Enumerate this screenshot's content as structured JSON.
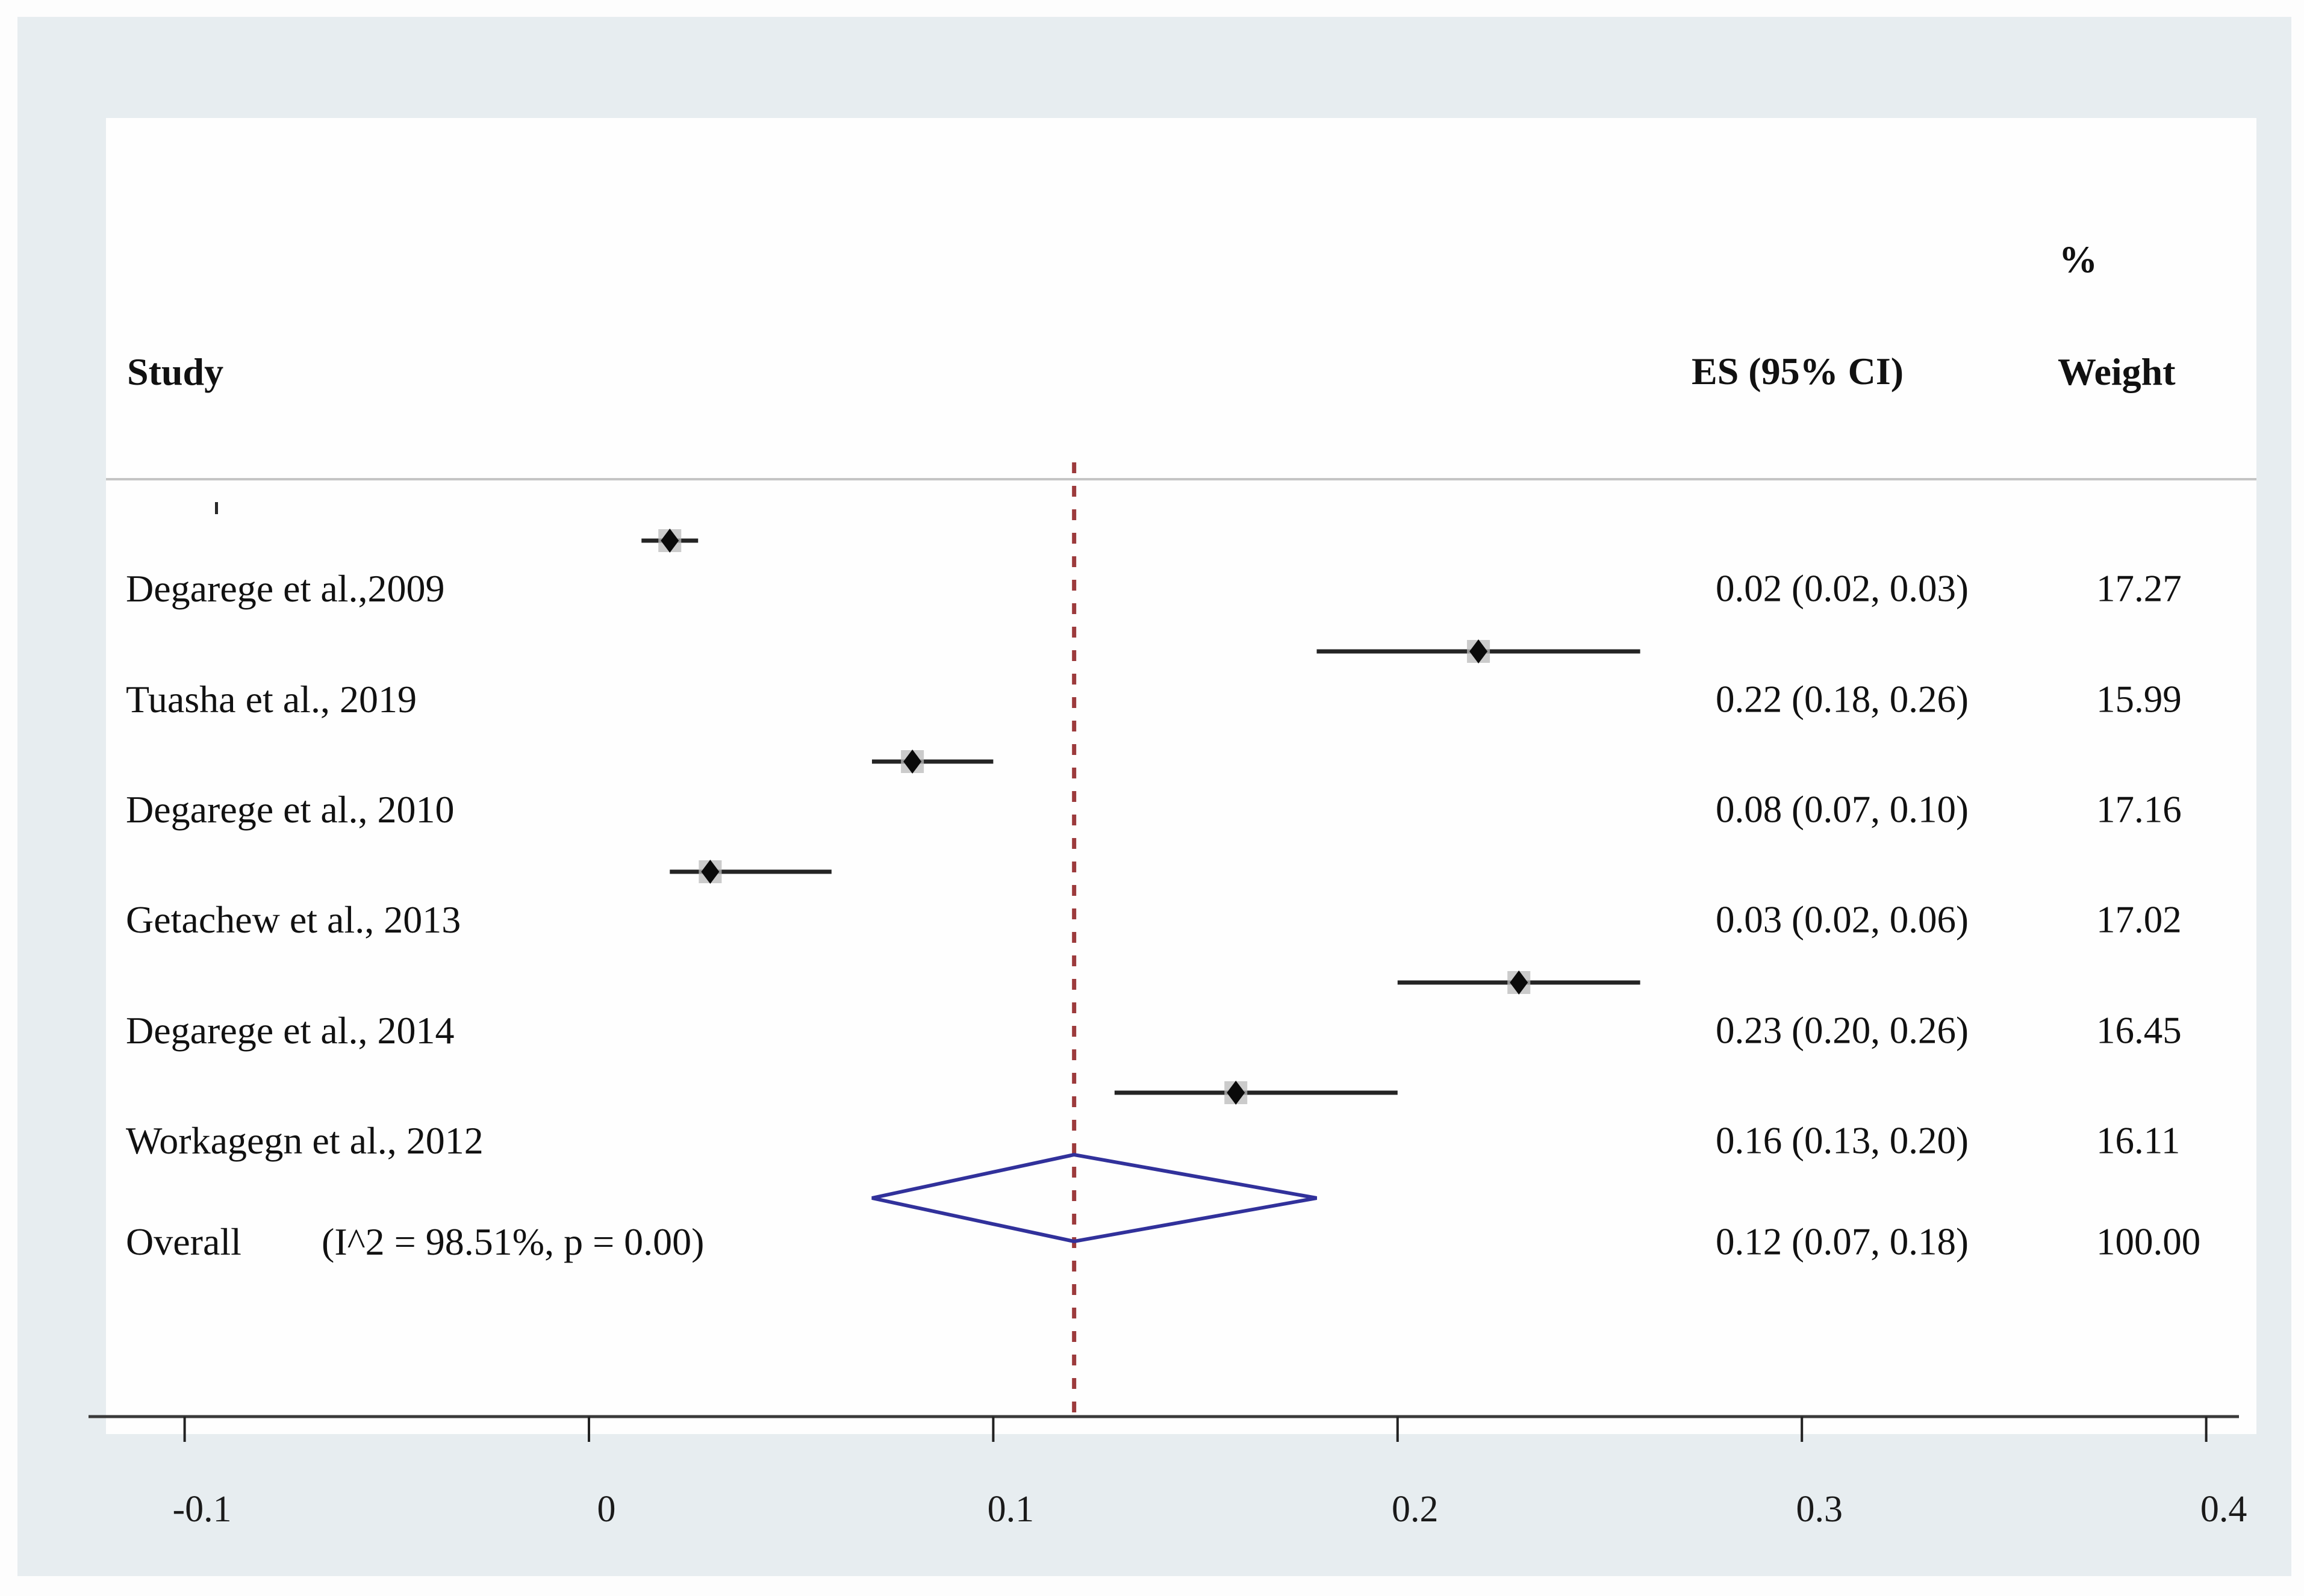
{
  "figure": {
    "kind": "forest-plot",
    "header": {
      "study_col": "Study",
      "percent_symbol": "%",
      "es_col": "ES (95% CI)",
      "weight_col": "Weight"
    },
    "colors": {
      "page_background": "#fdfdfd",
      "frame_background": "#e7edf0",
      "panel_background": "#fefefe",
      "separator_line": "#c4c4c4",
      "ci_line": "#242424",
      "marker_diamond": "#0a0a0a",
      "marker_weight_box": "#b9b9b9",
      "overall_diamond_outline": "#31319b",
      "reference_line": "#9c3a3c",
      "axis_line": "#3a3a3a",
      "text": "#111111"
    }
  },
  "chart_data": {
    "type": "forest",
    "title": "",
    "xlabel": "",
    "x_axis": {
      "ticks": [
        -0.1,
        0,
        0.1,
        0.2,
        0.3,
        0.4
      ],
      "tick_labels": [
        "-0.1",
        "0",
        "0.1",
        "0.2",
        "0.3",
        "0.4"
      ],
      "range": [
        -0.13,
        0.42
      ],
      "grid": false
    },
    "reference_line": {
      "value": 0.12,
      "style": "dashed"
    },
    "studies": [
      {
        "label": "Degarege et al.,2009",
        "es": 0.02,
        "lo": 0.02,
        "hi": 0.03,
        "plot_lo": 0.013,
        "plot_hi": 0.027,
        "es_ci_text": "0.02 (0.02, 0.03)",
        "weight": "17.27"
      },
      {
        "label": "Tuasha et al., 2019",
        "es": 0.22,
        "lo": 0.18,
        "hi": 0.26,
        "plot_lo": 0.18,
        "plot_hi": 0.26,
        "es_ci_text": "0.22 (0.18, 0.26)",
        "weight": "15.99"
      },
      {
        "label": "Degarege et al., 2010",
        "es": 0.08,
        "lo": 0.07,
        "hi": 0.1,
        "plot_lo": 0.07,
        "plot_hi": 0.1,
        "es_ci_text": "0.08 (0.07, 0.10)",
        "weight": "17.16"
      },
      {
        "label": "Getachew et al., 2013",
        "es": 0.03,
        "lo": 0.02,
        "hi": 0.06,
        "plot_lo": 0.02,
        "plot_hi": 0.06,
        "es_ci_text": "0.03 (0.02, 0.06)",
        "weight": "17.02"
      },
      {
        "label": "Degarege et al., 2014",
        "es": 0.23,
        "lo": 0.2,
        "hi": 0.26,
        "plot_lo": 0.2,
        "plot_hi": 0.26,
        "es_ci_text": "0.23 (0.20, 0.26)",
        "weight": "16.45"
      },
      {
        "label": "Workagegn et al., 2012",
        "es": 0.16,
        "lo": 0.13,
        "hi": 0.2,
        "plot_lo": 0.13,
        "plot_hi": 0.2,
        "es_ci_text": "0.16 (0.13, 0.20)",
        "weight": "16.11"
      }
    ],
    "overall": {
      "label": "Overall",
      "heterogeneity_text": "(I^2 = 98.51%, p = 0.00)",
      "es": 0.12,
      "lo": 0.07,
      "hi": 0.18,
      "es_ci_text": "0.12 (0.07, 0.18)",
      "weight": "100.00"
    }
  }
}
